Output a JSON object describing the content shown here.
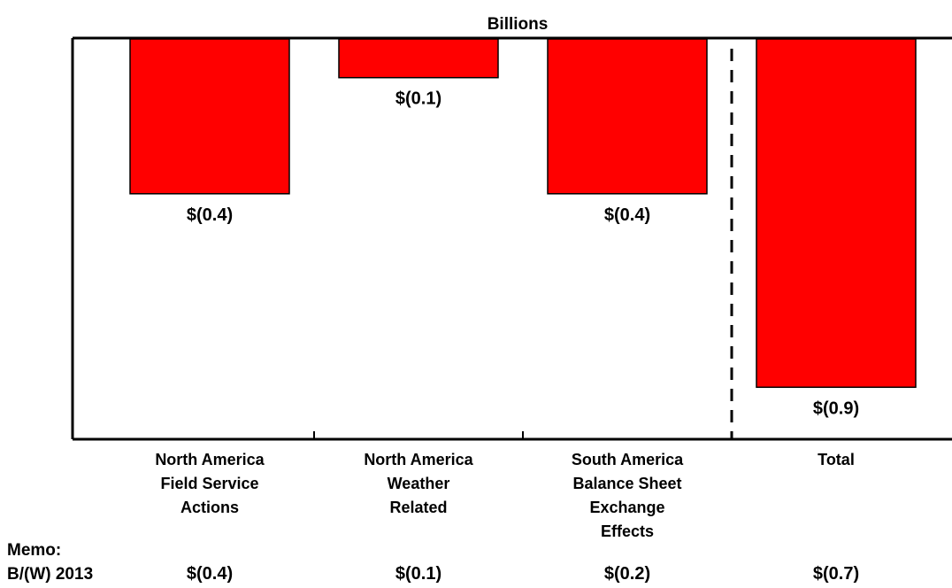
{
  "chart_data": {
    "type": "bar",
    "title": "Billions",
    "xlabel": "",
    "ylabel": "",
    "ylim": [
      -1.0,
      0
    ],
    "grid": false,
    "legend": "none",
    "categories": [
      "North America Field Service Actions",
      "North America Weather Related",
      "South America Balance Sheet Exchange Effects",
      "Total"
    ],
    "category_label_lines": [
      [
        "North America",
        "Field Service",
        "Actions"
      ],
      [
        "North America",
        "Weather",
        "Related"
      ],
      [
        "South America",
        "Balance Sheet",
        "Exchange",
        "Effects"
      ],
      [
        "Total"
      ]
    ],
    "values": [
      -0.4,
      -0.1,
      -0.4,
      -0.9
    ],
    "data_labels": [
      "$(0.4)",
      "$(0.1)",
      "$(0.4)",
      "$(0.9)"
    ],
    "bar_color": "#ff0000",
    "bar_edge_color": "#000000",
    "separator_before_category": 3,
    "memo": {
      "heading": "Memo:",
      "row_label": "B/(W) 2013",
      "values": [
        "$(0.4)",
        "$(0.1)",
        "$(0.2)",
        "$(0.7)"
      ]
    }
  }
}
